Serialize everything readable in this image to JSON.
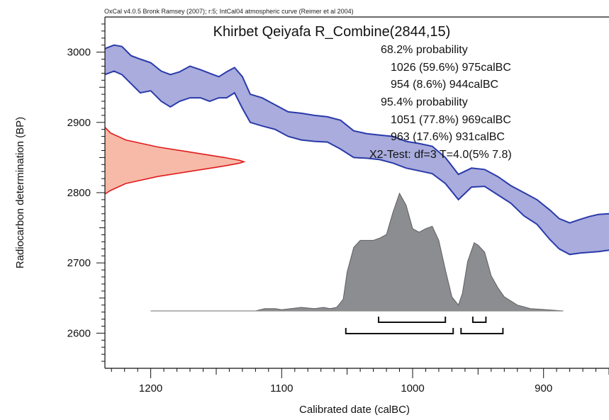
{
  "header_text": "OxCal v4.0.5 Bronk Ramsey (2007); r:5; IntCal04 atmospheric curve (Reimer et al 2004)",
  "colors": {
    "curve_fill": "#a9acdc",
    "curve_line": "#2a3aaa",
    "radiocarbon_fill": "#f7b9a8",
    "radiocarbon_line": "#e01b1b",
    "calibrated_fill": "#8c8d90",
    "calibrated_line": "#5e5f62",
    "bracket": "#111111"
  },
  "chart_data": {
    "type": "area",
    "title": "Khirbet Qeiyafa R_Combine(2844,15)",
    "annotations": [
      "68.2% probability",
      "1026 (59.6%) 975calBC",
      "954 (8.6%) 944calBC",
      "95.4% probability",
      "1051 (77.8%) 969calBC",
      "963 (17.6%) 931calBC",
      "X2-Test: df=3 T=4.0(5% 7.8)"
    ],
    "xlabel": "Calibrated date (calBC)",
    "ylabel": "Radiocarbon determination (BP)",
    "x_reversed": true,
    "xlim": [
      1235,
      850
    ],
    "ylim": [
      2550,
      3050
    ],
    "x_ticks": [
      1200,
      1100,
      1000,
      900
    ],
    "y_ticks": [
      2600,
      2700,
      2800,
      2900,
      3000
    ],
    "calibration_curve": {
      "x": [
        1235,
        1228,
        1222,
        1215,
        1208,
        1200,
        1192,
        1185,
        1178,
        1170,
        1162,
        1155,
        1148,
        1142,
        1136,
        1130,
        1124,
        1115,
        1105,
        1095,
        1085,
        1075,
        1065,
        1055,
        1045,
        1035,
        1025,
        1015,
        1005,
        995,
        985,
        975,
        965,
        955,
        945,
        935,
        925,
        915,
        905,
        895,
        888,
        880,
        872,
        865,
        858,
        850
      ],
      "upper": [
        3005,
        3010,
        3008,
        2995,
        2990,
        2985,
        2973,
        2968,
        2972,
        2980,
        2975,
        2970,
        2965,
        2972,
        2978,
        2965,
        2940,
        2935,
        2925,
        2915,
        2913,
        2910,
        2908,
        2903,
        2888,
        2884,
        2882,
        2880,
        2873,
        2870,
        2866,
        2850,
        2826,
        2835,
        2833,
        2823,
        2810,
        2800,
        2790,
        2775,
        2763,
        2757,
        2762,
        2766,
        2769,
        2770
      ],
      "lower": [
        2968,
        2973,
        2968,
        2955,
        2942,
        2945,
        2930,
        2922,
        2930,
        2935,
        2935,
        2930,
        2935,
        2935,
        2942,
        2920,
        2900,
        2895,
        2890,
        2880,
        2875,
        2873,
        2872,
        2862,
        2850,
        2849,
        2847,
        2842,
        2835,
        2831,
        2827,
        2813,
        2790,
        2808,
        2809,
        2797,
        2785,
        2767,
        2755,
        2733,
        2720,
        2712,
        2714,
        2715,
        2716,
        2718
      ]
    },
    "radiocarbon_distribution": {
      "y": [
        2893,
        2885,
        2875,
        2865,
        2855,
        2850,
        2846,
        2844,
        2842,
        2838,
        2833,
        2823,
        2813,
        2803,
        2798
      ],
      "density": [
        0,
        0.04,
        0.15,
        0.38,
        0.7,
        0.86,
        0.97,
        1.0,
        0.97,
        0.86,
        0.7,
        0.38,
        0.15,
        0.04,
        0
      ]
    },
    "calibrated_distribution": {
      "x": [
        1200,
        1120,
        1113,
        1105,
        1100,
        1093,
        1085,
        1075,
        1068,
        1063,
        1058,
        1053,
        1050,
        1045,
        1040,
        1035,
        1030,
        1025,
        1020,
        1015,
        1010,
        1005,
        1000,
        995,
        990,
        985,
        980,
        975,
        970,
        965,
        962,
        958,
        953,
        950,
        945,
        940,
        935,
        930,
        920,
        910,
        885
      ],
      "density": [
        0,
        0,
        0.02,
        0.02,
        0.01,
        0.02,
        0.03,
        0.02,
        0.03,
        0.02,
        0.03,
        0.1,
        0.33,
        0.54,
        0.6,
        0.6,
        0.6,
        0.62,
        0.65,
        0.84,
        1.0,
        0.9,
        0.7,
        0.67,
        0.7,
        0.72,
        0.6,
        0.35,
        0.12,
        0.05,
        0.15,
        0.42,
        0.58,
        0.56,
        0.5,
        0.3,
        0.2,
        0.12,
        0.05,
        0.02,
        0
      ]
    },
    "ranges_68": [
      [
        1026,
        975
      ],
      [
        954,
        944
      ]
    ],
    "ranges_95": [
      [
        1051,
        969
      ],
      [
        963,
        931
      ]
    ]
  }
}
